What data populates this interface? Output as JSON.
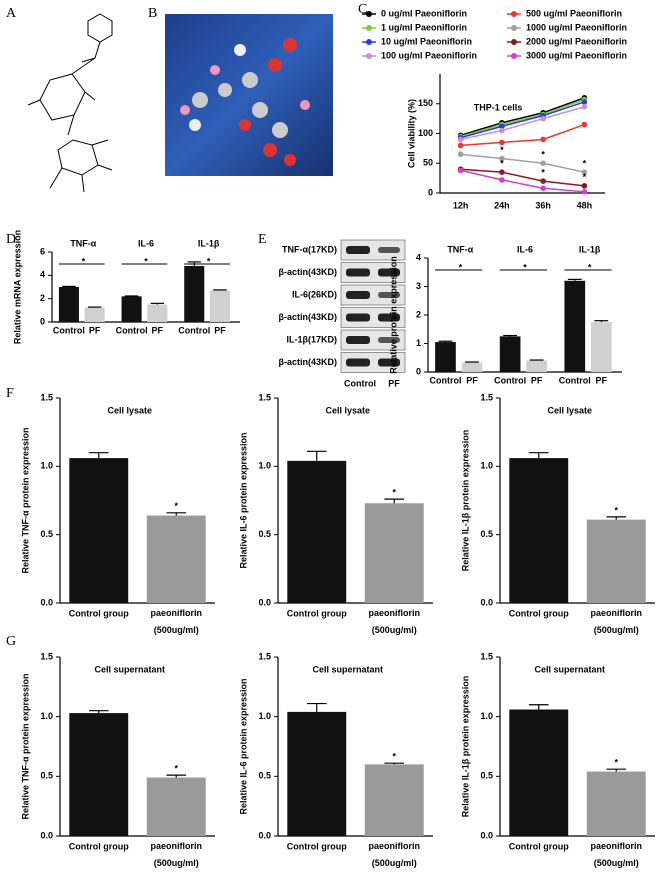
{
  "panels": [
    "A",
    "B",
    "C",
    "D",
    "E",
    "F",
    "G"
  ],
  "blot": {
    "rows": [
      "TNF-α(17KD)",
      "β-actin(43KD)",
      "IL-6(26KD)",
      "β-actin(43KD)",
      "IL-1β(17KD)",
      "β-actin(43KD)"
    ],
    "lanes": [
      "Control",
      "PF"
    ]
  },
  "chart_data": [
    {
      "type": "line",
      "title": "THP-1 cells",
      "ylabel": "Cell viability (%)",
      "categories": [
        "12h",
        "24h",
        "36h",
        "48h"
      ],
      "ylim": [
        0,
        200
      ],
      "yticks": [
        0,
        50,
        100,
        150
      ],
      "annotation": "*",
      "series": [
        {
          "name": "0 ug/ml Paeoniflorin",
          "color": "#000000",
          "values": [
            97,
            118,
            135,
            160
          ]
        },
        {
          "name": "1 ug/ml Paeoniflorin",
          "color": "#7ccd3a",
          "values": [
            95,
            115,
            132,
            157
          ]
        },
        {
          "name": "10 ug/ml Paeoniflorin",
          "color": "#2a3bd6",
          "values": [
            93,
            112,
            130,
            153
          ]
        },
        {
          "name": "100 ug/ml Paeoniflorin",
          "color": "#c38ee6",
          "values": [
            90,
            105,
            125,
            145
          ]
        },
        {
          "name": "500 ug/ml Paeoniflorin",
          "color": "#e8392a",
          "values": [
            80,
            85,
            90,
            115
          ]
        },
        {
          "name": "1000 ug/ml Paeoniflorin",
          "color": "#a0a0a0",
          "values": [
            65,
            58,
            50,
            35
          ]
        },
        {
          "name": "2000 ug/ml Paeoniflorin",
          "color": "#8b1a1a",
          "values": [
            40,
            35,
            20,
            12
          ]
        },
        {
          "name": "3000 ug/ml Paeoniflorin",
          "color": "#d23fd2",
          "values": [
            38,
            22,
            8,
            2
          ]
        }
      ]
    },
    {
      "type": "bar",
      "ylabel": "Relative mRNA expression",
      "categories": [
        "TNF-α",
        "IL-6",
        "IL-1β"
      ],
      "ylim": [
        0,
        6
      ],
      "yticks": [
        0,
        2,
        4,
        6
      ],
      "annotation": "*",
      "series": [
        {
          "name": "Control",
          "color": "#111111",
          "values": [
            3.0,
            2.2,
            4.8
          ],
          "errors": [
            0.05,
            0.03,
            0.35
          ]
        },
        {
          "name": "PF",
          "color": "#d0d0d0",
          "values": [
            1.25,
            1.5,
            2.7
          ],
          "errors": [
            0.03,
            0.1,
            0.05
          ]
        }
      ]
    },
    {
      "type": "bar",
      "ylabel": "Relative protein expression",
      "categories": [
        "TNF-α",
        "IL-6",
        "IL-1β"
      ],
      "ylim": [
        0,
        4
      ],
      "yticks": [
        0,
        1,
        2,
        3,
        4
      ],
      "annotation": "*",
      "series": [
        {
          "name": "Control",
          "color": "#111111",
          "values": [
            1.05,
            1.25,
            3.2
          ],
          "errors": [
            0.03,
            0.03,
            0.05
          ]
        },
        {
          "name": "PF",
          "color": "#d0d0d0",
          "values": [
            0.33,
            0.4,
            1.75
          ],
          "errors": [
            0.02,
            0.02,
            0.05
          ]
        }
      ]
    },
    {
      "type": "bar",
      "title": "Cell lysate",
      "ylabel": "Relative TNF-α protein expression",
      "categories": [
        "Control group",
        "paeoniflorin\n(500ug/ml)"
      ],
      "values": [
        1.06,
        0.64
      ],
      "errors": [
        0.04,
        0.02
      ],
      "colors": [
        "#111111",
        "#9a9a9a"
      ],
      "ylim": [
        0,
        1.5
      ],
      "yticks": [
        {
          "value": 0,
          "label": "0.0"
        },
        0.5,
        {
          "value": 1,
          "label": "1.0"
        },
        1.5
      ],
      "annotation": "*"
    },
    {
      "type": "bar",
      "title": "Cell lysate",
      "ylabel": "Relative IL-6 protein expression",
      "categories": [
        "Control group",
        "paeoniflorin\n(500ug/ml)"
      ],
      "values": [
        1.04,
        0.73
      ],
      "errors": [
        0.07,
        0.03
      ],
      "colors": [
        "#111111",
        "#9a9a9a"
      ],
      "ylim": [
        0,
        1.5
      ],
      "yticks": [
        {
          "value": 0,
          "label": "0.0"
        },
        0.5,
        {
          "value": 1,
          "label": "1.0"
        },
        1.5
      ],
      "annotation": "*"
    },
    {
      "type": "bar",
      "title": "Cell lysate",
      "ylabel": "Relative IL-1β protein expression",
      "categories": [
        "Control group",
        "paeoniflorin\n(500ug/ml)"
      ],
      "values": [
        1.06,
        0.61
      ],
      "errors": [
        0.04,
        0.02
      ],
      "colors": [
        "#111111",
        "#9a9a9a"
      ],
      "ylim": [
        0,
        1.5
      ],
      "yticks": [
        {
          "value": 0,
          "label": "0.0"
        },
        0.5,
        {
          "value": 1,
          "label": "1.0"
        },
        1.5
      ],
      "annotation": "*"
    },
    {
      "type": "bar",
      "title": "Cell supernatant",
      "ylabel": "Relative TNF-α protein expression",
      "categories": [
        "Control group",
        "paeoniflorin\n(500ug/ml)"
      ],
      "values": [
        1.03,
        0.49
      ],
      "errors": [
        0.02,
        0.02
      ],
      "colors": [
        "#111111",
        "#9a9a9a"
      ],
      "ylim": [
        0,
        1.5
      ],
      "yticks": [
        {
          "value": 0,
          "label": "0.0"
        },
        0.5,
        {
          "value": 1,
          "label": "1.0"
        },
        1.5
      ],
      "annotation": "*"
    },
    {
      "type": "bar",
      "title": "Cell supernatant",
      "ylabel": "Relative IL-6 protein expression",
      "categories": [
        "Control group",
        "paeoniflorin\n(500ug/ml)"
      ],
      "values": [
        1.04,
        0.6
      ],
      "errors": [
        0.07,
        0.01
      ],
      "colors": [
        "#111111",
        "#9a9a9a"
      ],
      "ylim": [
        0,
        1.5
      ],
      "yticks": [
        {
          "value": 0,
          "label": "0.0"
        },
        0.5,
        {
          "value": 1,
          "label": "1.0"
        },
        1.5
      ],
      "annotation": "*"
    },
    {
      "type": "bar",
      "title": "Cell supernatant",
      "ylabel": "Relative IL-1β protein expression",
      "categories": [
        "Control group",
        "paeoniflorin\n(500ug/ml)"
      ],
      "values": [
        1.06,
        0.54
      ],
      "errors": [
        0.04,
        0.02
      ],
      "colors": [
        "#111111",
        "#9a9a9a"
      ],
      "ylim": [
        0,
        1.5
      ],
      "yticks": [
        {
          "value": 0,
          "label": "0.0"
        },
        0.5,
        {
          "value": 1,
          "label": "1.0"
        },
        1.5
      ],
      "annotation": "*"
    }
  ]
}
